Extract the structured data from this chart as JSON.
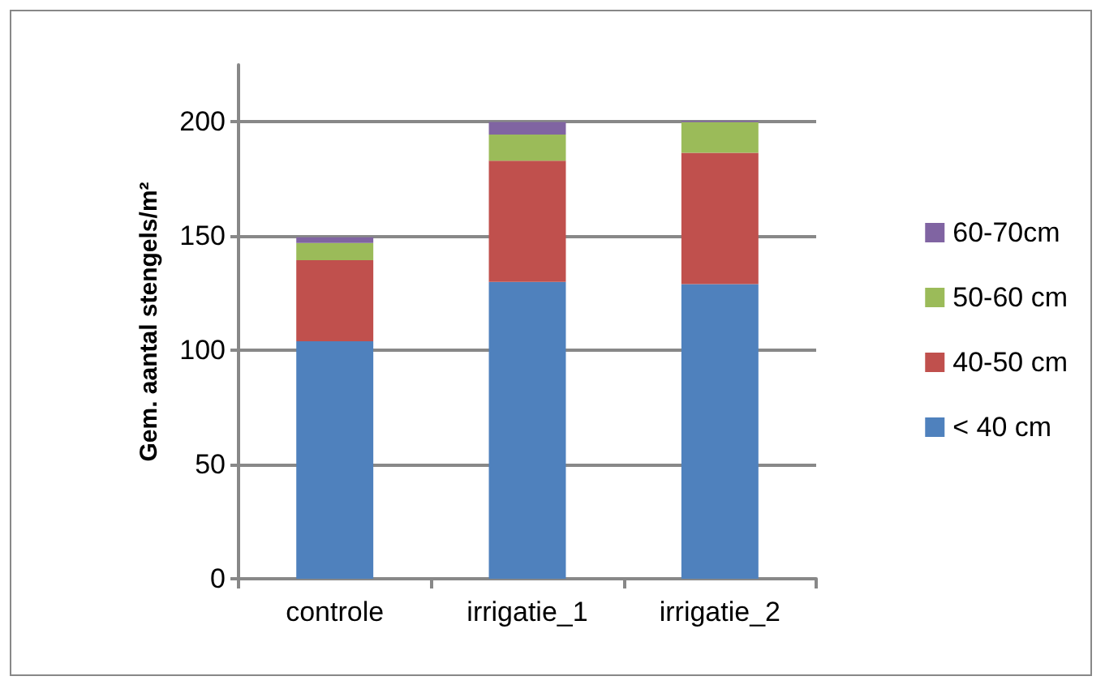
{
  "chart_data": {
    "type": "bar",
    "stacked": true,
    "ylabel": "Gem. aantal stengels/m²",
    "categories": [
      "controle",
      "irrigatie_1",
      "irrigatie_2"
    ],
    "series": [
      {
        "name": "< 40 cm",
        "color": "#4f81bd",
        "values": [
          104,
          130,
          129
        ]
      },
      {
        "name": "40-50 cm",
        "color": "#c0504d",
        "values": [
          35.5,
          53,
          57.5
        ]
      },
      {
        "name": "50-60 cm",
        "color": "#9bbb59",
        "values": [
          7.5,
          11.5,
          13.5
        ]
      },
      {
        "name": "60-70cm",
        "color": "#8064a2",
        "values": [
          2.5,
          5.5,
          0.5
        ]
      }
    ],
    "ylim": [
      0,
      225
    ],
    "yticks": [
      0,
      50,
      100,
      150,
      200
    ],
    "grid": "y",
    "legend": "right"
  }
}
